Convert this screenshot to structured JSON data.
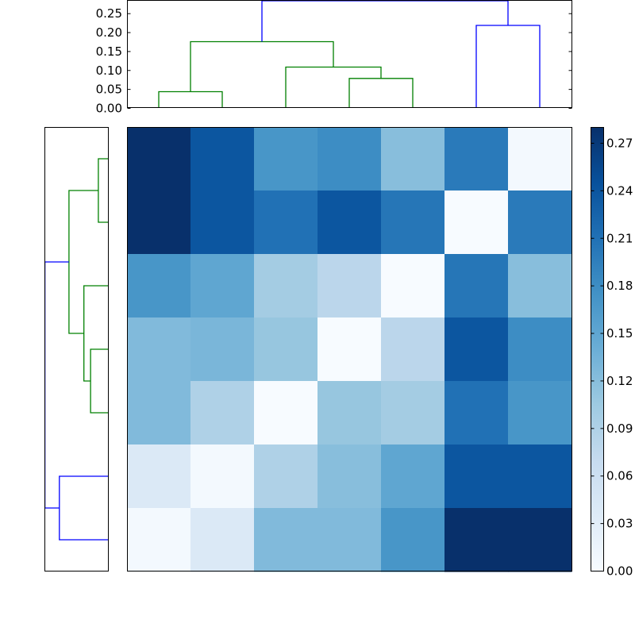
{
  "chart_data": {
    "type": "heatmap",
    "heatmap": {
      "rows": 7,
      "cols": 7,
      "values": [
        [
          0.28,
          0.24,
          0.17,
          0.18,
          0.12,
          0.2,
          0.005
        ],
        [
          0.28,
          0.24,
          0.21,
          0.24,
          0.205,
          0.0,
          0.2
        ],
        [
          0.17,
          0.15,
          0.1,
          0.08,
          0.0,
          0.205,
          0.12
        ],
        [
          0.125,
          0.13,
          0.11,
          0.0,
          0.08,
          0.24,
          0.18
        ],
        [
          0.125,
          0.09,
          0.0,
          0.11,
          0.1,
          0.21,
          0.17
        ],
        [
          0.04,
          0.005,
          0.09,
          0.12,
          0.15,
          0.24,
          0.24
        ],
        [
          0.005,
          0.04,
          0.125,
          0.125,
          0.17,
          0.28,
          0.28
        ]
      ]
    },
    "colorbar": {
      "colormap": "Blues",
      "range": [
        0.0,
        0.28
      ],
      "tick_labels": [
        "0.00",
        "0.03",
        "0.06",
        "0.09",
        "0.12",
        "0.15",
        "0.18",
        "0.21",
        "0.24",
        "0.27"
      ]
    },
    "top_dendrogram": {
      "ylim": [
        0,
        0.285
      ],
      "tick_labels": [
        "0.00",
        "0.05",
        "0.10",
        "0.15",
        "0.20",
        "0.25"
      ],
      "leaf_count": 7,
      "links": [
        {
          "x": [
            0.5,
            0.5,
            1.5,
            1.5
          ],
          "y": [
            0.0,
            0.043,
            0.043,
            0.0
          ],
          "color": "#008000"
        },
        {
          "x": [
            3.5,
            3.5,
            4.5,
            4.5
          ],
          "y": [
            0.0,
            0.078,
            0.078,
            0.0
          ],
          "color": "#008000"
        },
        {
          "x": [
            2.5,
            2.5,
            4.0,
            4.0
          ],
          "y": [
            0.0,
            0.108,
            0.108,
            0.078
          ],
          "color": "#008000"
        },
        {
          "x": [
            1.0,
            1.0,
            3.25,
            3.25
          ],
          "y": [
            0.043,
            0.175,
            0.175,
            0.108
          ],
          "color": "#008000"
        },
        {
          "x": [
            5.5,
            5.5,
            6.5,
            6.5
          ],
          "y": [
            0.0,
            0.218,
            0.218,
            0.0
          ],
          "color": "#0000ff"
        },
        {
          "x": [
            2.125,
            2.125,
            6.0,
            6.0
          ],
          "y": [
            0.175,
            0.283,
            0.283,
            0.218
          ],
          "color": "#0000ff"
        }
      ]
    },
    "left_dendrogram": {
      "xlim": [
        0.285,
        0
      ],
      "leaf_count": 7,
      "links": [
        {
          "x": [
            0.0,
            0.043,
            0.043,
            0.0
          ],
          "y": [
            0.5,
            0.5,
            1.5,
            1.5
          ],
          "color": "#008000"
        },
        {
          "x": [
            0.0,
            0.078,
            0.078,
            0.0
          ],
          "y": [
            3.5,
            3.5,
            4.5,
            4.5
          ],
          "color": "#008000"
        },
        {
          "x": [
            0.0,
            0.108,
            0.108,
            0.078
          ],
          "y": [
            2.5,
            2.5,
            4.0,
            4.0
          ],
          "color": "#008000"
        },
        {
          "x": [
            0.043,
            0.175,
            0.175,
            0.108
          ],
          "y": [
            1.0,
            1.0,
            3.25,
            3.25
          ],
          "color": "#008000"
        },
        {
          "x": [
            0.0,
            0.218,
            0.218,
            0.0
          ],
          "y": [
            5.5,
            5.5,
            6.5,
            6.5
          ],
          "color": "#0000ff"
        },
        {
          "x": [
            0.175,
            0.283,
            0.283,
            0.218
          ],
          "y": [
            2.125,
            2.125,
            6.0,
            6.0
          ],
          "color": "#0000ff"
        }
      ]
    }
  }
}
